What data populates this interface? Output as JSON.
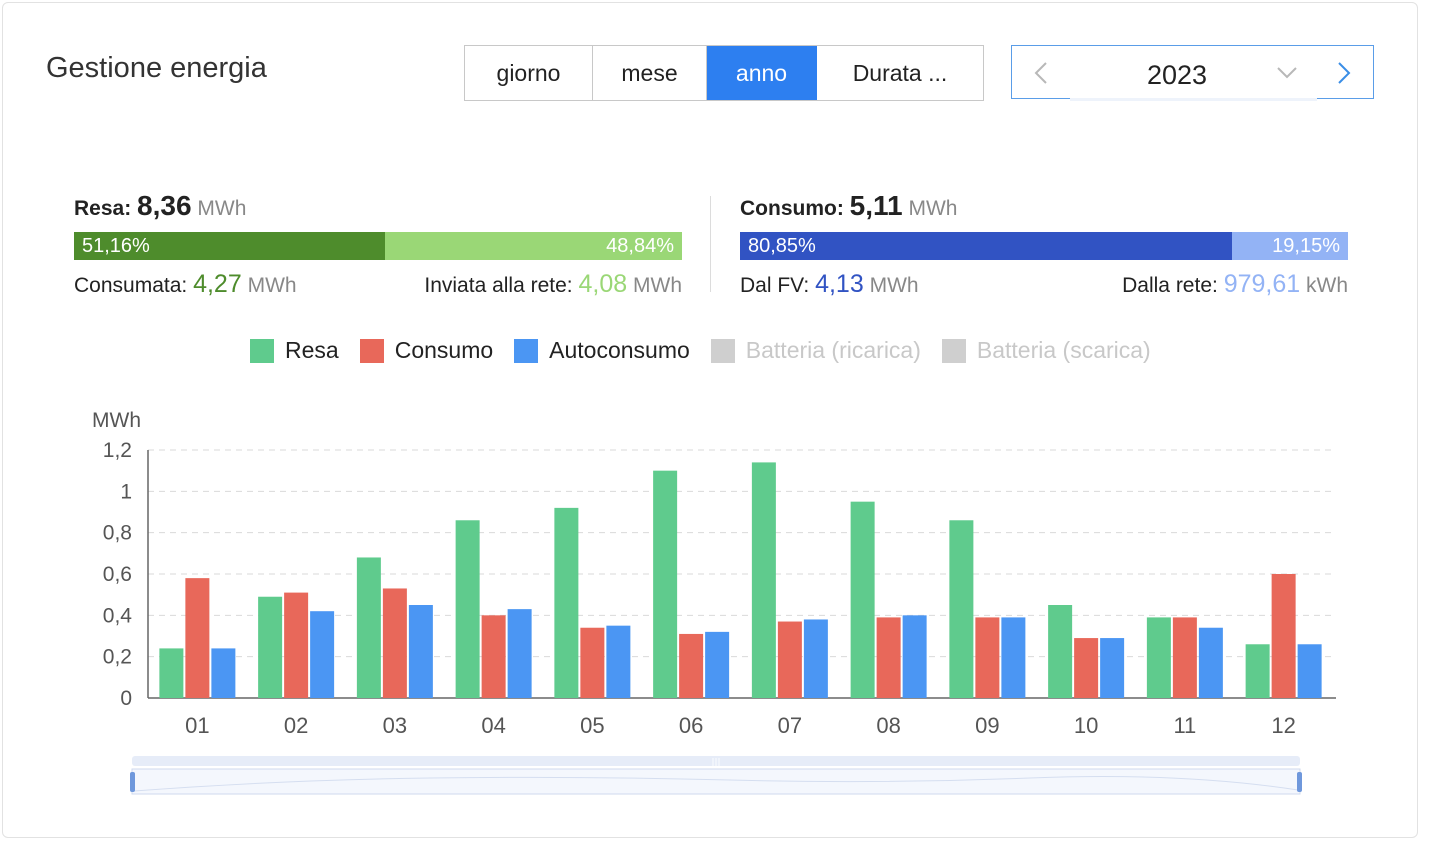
{
  "header": {
    "title": "Gestione energia",
    "tabs": [
      {
        "label": "giorno",
        "active": false
      },
      {
        "label": "mese",
        "active": false
      },
      {
        "label": "anno",
        "active": true
      },
      {
        "label": "Durata ...",
        "active": false
      }
    ],
    "year": "2023"
  },
  "production": {
    "label": "Resa:",
    "value": "8,36",
    "unit": "MWh",
    "left_pct": "51,16%",
    "right_pct": "48,84%",
    "left_color": "#4e8c2c",
    "right_color": "#9ad776",
    "consumed_label": "Consumata:",
    "consumed_value": "4,27",
    "consumed_unit": "MWh",
    "grid_label": "Inviata alla rete:",
    "grid_value": "4,08",
    "grid_unit": "MWh"
  },
  "consumption": {
    "label": "Consumo:",
    "value": "5,11",
    "unit": "MWh",
    "left_pct": "80,85%",
    "right_pct": "19,15%",
    "left_color": "#3153c3",
    "right_color": "#93b3f5",
    "pv_label": "Dal FV:",
    "pv_value": "4,13",
    "pv_unit": "MWh",
    "grid_label": "Dalla rete:",
    "grid_value": "979,61",
    "grid_unit": "kWh"
  },
  "legend": [
    {
      "name": "Resa",
      "color": "#5fcb8d",
      "active": true
    },
    {
      "name": "Consumo",
      "color": "#e8685a",
      "active": true
    },
    {
      "name": "Autoconsumo",
      "color": "#4b96f3",
      "active": true
    },
    {
      "name": "Batteria (ricarica)",
      "color": "#cfcfcf",
      "active": false
    },
    {
      "name": "Batteria (scarica)",
      "color": "#cfcfcf",
      "active": false
    }
  ],
  "chart_data": {
    "type": "bar",
    "ylabel": "MWh",
    "ylim": [
      0,
      1.2
    ],
    "yticks": [
      {
        "value": 0,
        "label": "0"
      },
      {
        "value": 0.2,
        "label": "0,2"
      },
      {
        "value": 0.4,
        "label": "0,4"
      },
      {
        "value": 0.6,
        "label": "0,6"
      },
      {
        "value": 0.8,
        "label": "0,8"
      },
      {
        "value": 1.0,
        "label": "1"
      },
      {
        "value": 1.2,
        "label": "1,2"
      }
    ],
    "grid": true,
    "categories": [
      "01",
      "02",
      "03",
      "04",
      "05",
      "06",
      "07",
      "08",
      "09",
      "10",
      "11",
      "12"
    ],
    "series": [
      {
        "name": "Resa",
        "color": "#5fcb8d",
        "values": [
          0.24,
          0.49,
          0.68,
          0.86,
          0.92,
          1.1,
          1.14,
          0.95,
          0.86,
          0.45,
          0.39,
          0.26
        ]
      },
      {
        "name": "Consumo",
        "color": "#e8685a",
        "values": [
          0.58,
          0.51,
          0.53,
          0.4,
          0.34,
          0.31,
          0.37,
          0.39,
          0.39,
          0.29,
          0.39,
          0.6
        ]
      },
      {
        "name": "Autoconsumo",
        "color": "#4b96f3",
        "values": [
          0.24,
          0.42,
          0.45,
          0.43,
          0.35,
          0.32,
          0.38,
          0.4,
          0.39,
          0.29,
          0.34,
          0.26
        ]
      }
    ]
  }
}
